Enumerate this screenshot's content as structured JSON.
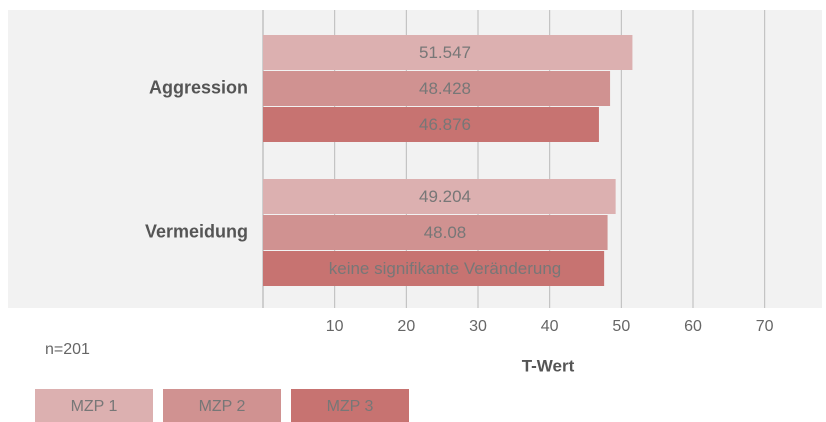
{
  "chart_data": {
    "type": "barh",
    "categories": [
      "Aggression",
      "Vermeidung"
    ],
    "series": [
      {
        "name": "MZP 1",
        "color": "#dcb0b0",
        "values": [
          51.547,
          49.204
        ]
      },
      {
        "name": "MZP 2",
        "color": "#d09291",
        "values": [
          48.428,
          48.08
        ]
      },
      {
        "name": "MZP 3",
        "color": "#c77371",
        "values": [
          46.876,
          47.6
        ],
        "value_labels": [
          "46.876",
          "keine signifikante Veränderung"
        ]
      }
    ],
    "xlim": [
      0,
      78
    ],
    "xticks": [
      10,
      20,
      30,
      40,
      50,
      60,
      70
    ],
    "xlabel": "T-Wert",
    "note": "n=201",
    "grid": true
  }
}
